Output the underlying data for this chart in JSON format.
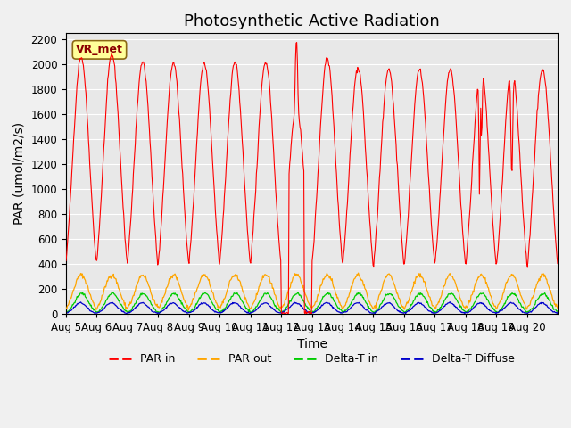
{
  "title": "Photosynthetic Active Radiation",
  "ylabel": "PAR (umol/m2/s)",
  "xlabel": "Time",
  "ylim": [
    0,
    2250
  ],
  "yticks": [
    0,
    200,
    400,
    600,
    800,
    1000,
    1200,
    1400,
    1600,
    1800,
    2000,
    2200
  ],
  "xtick_labels": [
    "Aug 5",
    "Aug 6",
    "Aug 7",
    "Aug 8",
    "Aug 9",
    "Aug 10",
    "Aug 11",
    "Aug 12",
    "Aug 13",
    "Aug 14",
    "Aug 15",
    "Aug 16",
    "Aug 17",
    "Aug 18",
    "Aug 19",
    "Aug 20"
  ],
  "annotation_text": "VR_met",
  "colors": {
    "par_in": "#FF0000",
    "par_out": "#FFA500",
    "delta_t_in": "#00CC00",
    "delta_t_diffuse": "#0000CC"
  },
  "legend_labels": [
    "PAR in",
    "PAR out",
    "Delta-T in",
    "Delta-T Diffuse"
  ],
  "background_color": "#E8E8E8",
  "grid_color": "#FFFFFF",
  "n_days": 16,
  "par_in_peaks": [
    2060,
    2080,
    2020,
    2010,
    2010,
    2020,
    2020,
    2200,
    2050,
    1970,
    1960,
    1960,
    1960,
    1970,
    1980,
    1960
  ],
  "par_out_max": 310,
  "delta_t_in_max": 160,
  "delta_t_diffuse_max": 85,
  "samples_per_day": 48,
  "title_fontsize": 13,
  "axis_label_fontsize": 10,
  "tick_fontsize": 8.5,
  "legend_fontsize": 9
}
